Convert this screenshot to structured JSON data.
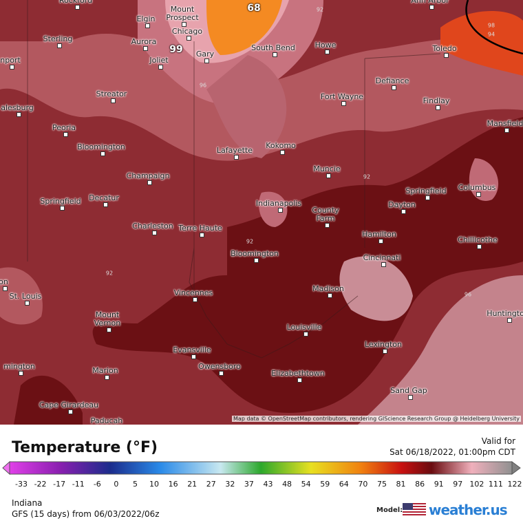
{
  "map": {
    "cities": [
      "Rockford",
      "Ann Arbor",
      "Elgin",
      "Mount Prospect",
      "Chicago",
      "Aurora",
      "Sterling",
      "Joliet",
      "Gary",
      "South Bend",
      "Howe",
      "Toledo",
      "nport",
      "Defiance",
      "Streator",
      "Fort Wayne",
      "Findlay",
      "alesburg",
      "Peoria",
      "Mansfield",
      "Bloomington",
      "Lafayette",
      "Kokomo",
      "Muncie",
      "Champaign",
      "Springfield",
      "Columbus",
      "Springfield",
      "Decatur",
      "Indianapolis",
      "Dayton",
      "County Farm",
      "Charleston",
      "Terre Haute",
      "Hamilton",
      "Chillicothe",
      "Bloomington",
      "Cincinnati",
      "on",
      "St. Louis",
      "Vincennes",
      "Madison",
      "Huntington",
      "Mount Vernon",
      "Louisville",
      "Lexington",
      "Evansville",
      "Owensboro",
      "Marion",
      "mington",
      "Elizabethtown",
      "Sand Gap",
      "Cape Girardeau",
      "Paducah"
    ],
    "contour_labels": [
      "68",
      "99",
      "96",
      "92",
      "92",
      "92",
      "92",
      "96",
      "98",
      "94"
    ],
    "attribution": "Map data © OpenStreetMap contributors, rendering GIScience Research Group @ Heidelberg University"
  },
  "legend": {
    "title": "Temperature (°F)",
    "ticks": [
      -33,
      -22,
      -17,
      -11,
      -6,
      0,
      5,
      10,
      16,
      21,
      27,
      32,
      37,
      43,
      48,
      54,
      59,
      64,
      70,
      75,
      81,
      86,
      91,
      97,
      102,
      111,
      122
    ]
  },
  "valid": {
    "label": "Valid for",
    "time": "Sat 06/18/2022, 01:00pm CDT"
  },
  "footer": {
    "region": "Indiana",
    "model_run": "GFS (15 days) from 06/03/2022/06z",
    "model_label": "Model:",
    "brand": "weather.us"
  }
}
